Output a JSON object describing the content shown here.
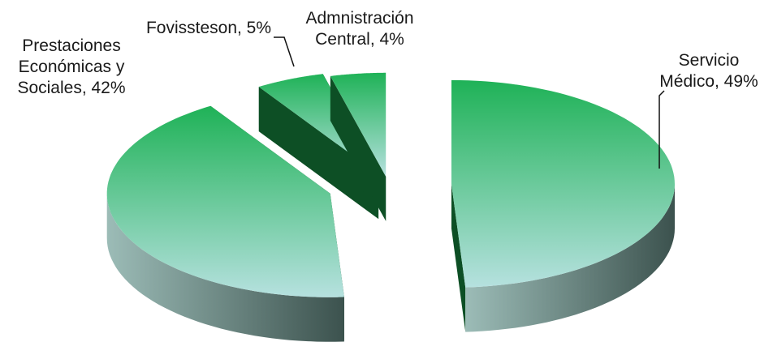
{
  "chart_data": {
    "type": "pie",
    "three_d": true,
    "exploded": true,
    "values": [
      49,
      42,
      5,
      4
    ],
    "value_labels": [
      "Servicio Médico, 49%",
      "Prestaciones Económicas y Sociales, 42%",
      "Fovissteson, 5%",
      "Admnistración Central, 4%"
    ],
    "top_colors": [
      "#1fb257",
      "#b6e1df"
    ],
    "side_colors": [
      "#9cbcb7",
      "#3c524e"
    ],
    "wall_color": "#0d4f25"
  }
}
